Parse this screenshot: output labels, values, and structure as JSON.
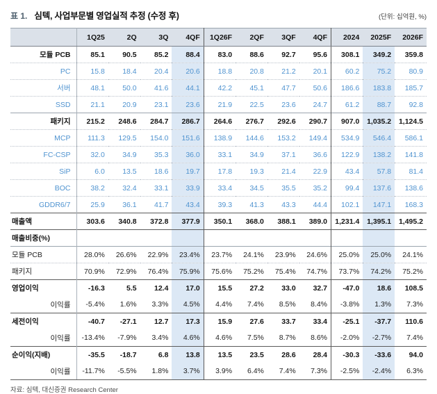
{
  "title": {
    "prefix": "표 1.",
    "text": "심텍, 사업부문별 영업실적 추정 (수정 후)",
    "unit_note": "(단위: 십억원, %)"
  },
  "colors": {
    "accent_blue": "#4f93d0",
    "header_bg": "#dbe1e9",
    "highlight_bg": "#dce8f5"
  },
  "table": {
    "columns": [
      "1Q25",
      "2Q",
      "3Q",
      "4QF",
      "1Q26F",
      "2QF",
      "3QF",
      "4QF",
      "2024",
      "2025F",
      "2026F"
    ],
    "highlight_columns": [
      3,
      9
    ],
    "divider_after_columns": [
      3,
      7
    ],
    "rows": [
      {
        "label": "모듈 PCB",
        "style": "section",
        "border": "none",
        "values": [
          "85.1",
          "90.5",
          "85.2",
          "88.4",
          "83.0",
          "88.6",
          "92.7",
          "95.6",
          "308.1",
          "349.2",
          "359.8"
        ]
      },
      {
        "label": "PC",
        "style": "sub",
        "border": "dotted",
        "values": [
          "15.8",
          "18.4",
          "20.4",
          "20.6",
          "18.8",
          "20.8",
          "21.2",
          "20.1",
          "60.2",
          "75.2",
          "80.9"
        ]
      },
      {
        "label": "서버",
        "style": "sub",
        "border": "dotted",
        "values": [
          "48.1",
          "50.0",
          "41.6",
          "44.1",
          "42.2",
          "45.1",
          "47.7",
          "50.6",
          "186.6",
          "183.8",
          "185.7"
        ]
      },
      {
        "label": "SSD",
        "style": "sub",
        "border": "dotted",
        "values": [
          "21.1",
          "20.9",
          "23.1",
          "23.6",
          "21.9",
          "22.5",
          "23.6",
          "24.7",
          "61.2",
          "88.7",
          "92.8"
        ]
      },
      {
        "label": "패키지",
        "style": "section",
        "border": "solid",
        "values": [
          "215.2",
          "248.6",
          "284.7",
          "286.7",
          "264.6",
          "276.7",
          "292.6",
          "290.7",
          "907.0",
          "1,035.2",
          "1,124.5"
        ]
      },
      {
        "label": "MCP",
        "style": "sub",
        "border": "dotted",
        "values": [
          "111.3",
          "129.5",
          "154.0",
          "151.6",
          "138.9",
          "144.6",
          "153.2",
          "149.4",
          "534.9",
          "546.4",
          "586.1"
        ]
      },
      {
        "label": "FC-CSP",
        "style": "sub",
        "border": "dotted",
        "values": [
          "32.0",
          "34.9",
          "35.3",
          "36.0",
          "33.1",
          "34.9",
          "37.1",
          "36.6",
          "122.9",
          "138.2",
          "141.8"
        ]
      },
      {
        "label": "SiP",
        "style": "sub",
        "border": "dotted",
        "values": [
          "6.0",
          "13.5",
          "18.6",
          "19.7",
          "17.8",
          "19.3",
          "21.4",
          "22.9",
          "43.4",
          "57.8",
          "81.4"
        ]
      },
      {
        "label": "BOC",
        "style": "sub",
        "border": "dotted",
        "values": [
          "38.2",
          "32.4",
          "33.1",
          "33.9",
          "33.4",
          "34.5",
          "35.5",
          "35.2",
          "99.4",
          "137.6",
          "138.6"
        ]
      },
      {
        "label": "GDDR6/7",
        "style": "sub",
        "border": "dotted",
        "values": [
          "25.9",
          "36.1",
          "41.7",
          "43.4",
          "39.3",
          "41.3",
          "43.3",
          "44.4",
          "102.1",
          "147.1",
          "168.3"
        ]
      },
      {
        "label": "매출액",
        "style": "total",
        "border": "strong",
        "values": [
          "303.6",
          "340.8",
          "372.8",
          "377.9",
          "350.1",
          "368.0",
          "388.1",
          "389.0",
          "1,231.4",
          "1,395.1",
          "1,495.2"
        ]
      },
      {
        "label": "매출비중(%)",
        "style": "total",
        "border": "strong",
        "values": [
          "",
          "",
          "",
          "",
          "",
          "",
          "",
          "",
          "",
          "",
          ""
        ]
      },
      {
        "label": "모듈 PCB",
        "style": "plain",
        "border": "solid",
        "values": [
          "28.0%",
          "26.6%",
          "22.9%",
          "23.4%",
          "23.7%",
          "24.1%",
          "23.9%",
          "24.6%",
          "25.0%",
          "25.0%",
          "24.1%"
        ]
      },
      {
        "label": "패키지",
        "style": "plain",
        "border": "dotted",
        "values": [
          "70.9%",
          "72.9%",
          "76.4%",
          "75.9%",
          "75.6%",
          "75.2%",
          "75.4%",
          "74.7%",
          "73.7%",
          "74.2%",
          "75.2%"
        ]
      },
      {
        "label": "영업이익",
        "style": "total",
        "border": "strong",
        "values": [
          "-16.3",
          "5.5",
          "12.4",
          "17.0",
          "15.5",
          "27.2",
          "33.0",
          "32.7",
          "-47.0",
          "18.6",
          "108.5"
        ]
      },
      {
        "label": "이익률",
        "style": "ratio",
        "border": "none",
        "values": [
          "-5.4%",
          "1.6%",
          "3.3%",
          "4.5%",
          "4.4%",
          "7.4%",
          "8.5%",
          "8.4%",
          "-3.8%",
          "1.3%",
          "7.3%"
        ]
      },
      {
        "label": "세전이익",
        "style": "total",
        "border": "strong",
        "values": [
          "-40.7",
          "-27.1",
          "12.7",
          "17.3",
          "15.9",
          "27.6",
          "33.7",
          "33.4",
          "-25.1",
          "-37.7",
          "110.6"
        ]
      },
      {
        "label": "이익률",
        "style": "ratio",
        "border": "none",
        "values": [
          "-13.4%",
          "-7.9%",
          "3.4%",
          "4.6%",
          "4.6%",
          "7.5%",
          "8.7%",
          "8.6%",
          "-2.0%",
          "-2.7%",
          "7.4%"
        ]
      },
      {
        "label": "순이익(지배)",
        "style": "total",
        "border": "strong",
        "values": [
          "-35.5",
          "-18.7",
          "6.8",
          "13.8",
          "13.5",
          "23.5",
          "28.6",
          "28.4",
          "-30.3",
          "-33.6",
          "94.0"
        ]
      },
      {
        "label": "이익률",
        "style": "ratio",
        "border": "none",
        "values": [
          "-11.7%",
          "-5.5%",
          "1.8%",
          "3.7%",
          "3.9%",
          "6.4%",
          "7.4%",
          "7.3%",
          "-2.5%",
          "-2.4%",
          "6.3%"
        ]
      }
    ]
  },
  "footer": {
    "source": "자료: 심텍, 대신증권 Research Center"
  }
}
